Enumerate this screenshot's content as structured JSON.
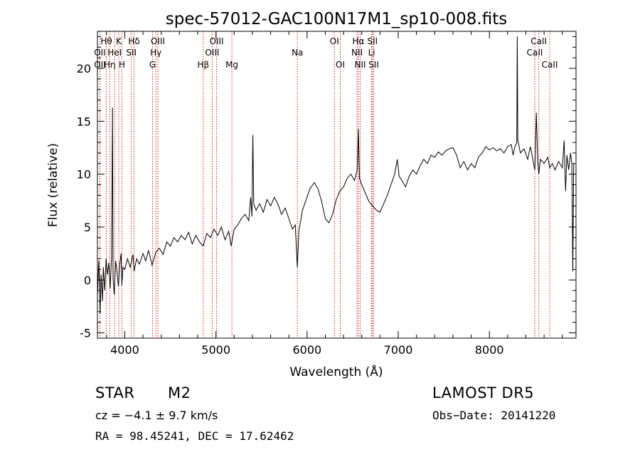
{
  "chart_data": {
    "type": "line",
    "title": "spec-57012-GAC100N17M1_sp10-008.fits",
    "xlabel": "Wavelength (Å)",
    "ylabel": "Flux (relative)",
    "xlim": [
      3700,
      8950
    ],
    "ylim": [
      -5.5,
      23.5
    ],
    "x_ticks": [
      4000,
      5000,
      6000,
      7000,
      8000
    ],
    "y_ticks": [
      -5,
      0,
      5,
      10,
      15,
      20
    ],
    "series": [
      {
        "values_xy": [
          [
            3700,
            -1.5
          ],
          [
            3715,
            1.8
          ],
          [
            3730,
            -3.2
          ],
          [
            3740,
            0.5
          ],
          [
            3755,
            -2.0
          ],
          [
            3765,
            1.2
          ],
          [
            3780,
            -1.0
          ],
          [
            3795,
            2.0
          ],
          [
            3810,
            0.5
          ],
          [
            3825,
            1.6
          ],
          [
            3840,
            -0.8
          ],
          [
            3855,
            2.2
          ],
          [
            3865,
            16.3
          ],
          [
            3872,
            0.2
          ],
          [
            3885,
            -1.4
          ],
          [
            3900,
            1.8
          ],
          [
            3915,
            0.8
          ],
          [
            3930,
            -0.6
          ],
          [
            3945,
            1.5
          ],
          [
            3960,
            2.5
          ],
          [
            3968,
            -0.5
          ],
          [
            3980,
            1.2
          ],
          [
            4000,
            1.0
          ],
          [
            4030,
            2.0
          ],
          [
            4060,
            1.2
          ],
          [
            4090,
            2.4
          ],
          [
            4102,
            0.8
          ],
          [
            4130,
            2.0
          ],
          [
            4160,
            1.5
          ],
          [
            4200,
            2.5
          ],
          [
            4230,
            1.8
          ],
          [
            4260,
            2.8
          ],
          [
            4300,
            1.4
          ],
          [
            4340,
            2.6
          ],
          [
            4380,
            3.0
          ],
          [
            4420,
            2.4
          ],
          [
            4460,
            3.6
          ],
          [
            4500,
            3.2
          ],
          [
            4540,
            4.0
          ],
          [
            4580,
            3.6
          ],
          [
            4620,
            4.2
          ],
          [
            4660,
            3.8
          ],
          [
            4700,
            4.5
          ],
          [
            4740,
            3.4
          ],
          [
            4780,
            4.2
          ],
          [
            4820,
            3.6
          ],
          [
            4861,
            3.2
          ],
          [
            4900,
            4.4
          ],
          [
            4940,
            4.0
          ],
          [
            4980,
            4.8
          ],
          [
            5020,
            4.2
          ],
          [
            5060,
            5.0
          ],
          [
            5100,
            3.8
          ],
          [
            5140,
            4.6
          ],
          [
            5167,
            3.2
          ],
          [
            5200,
            4.8
          ],
          [
            5240,
            5.2
          ],
          [
            5280,
            5.8
          ],
          [
            5320,
            6.2
          ],
          [
            5360,
            5.6
          ],
          [
            5380,
            7.8
          ],
          [
            5395,
            6.0
          ],
          [
            5405,
            13.7
          ],
          [
            5415,
            7.2
          ],
          [
            5440,
            6.6
          ],
          [
            5480,
            7.2
          ],
          [
            5520,
            6.4
          ],
          [
            5560,
            7.6
          ],
          [
            5600,
            7.0
          ],
          [
            5640,
            7.8
          ],
          [
            5680,
            7.2
          ],
          [
            5720,
            6.2
          ],
          [
            5760,
            6.8
          ],
          [
            5800,
            5.8
          ],
          [
            5840,
            4.8
          ],
          [
            5870,
            5.2
          ],
          [
            5893,
            1.2
          ],
          [
            5910,
            4.6
          ],
          [
            5950,
            6.6
          ],
          [
            5990,
            7.6
          ],
          [
            6030,
            8.6
          ],
          [
            6080,
            9.2
          ],
          [
            6120,
            8.6
          ],
          [
            6160,
            7.4
          ],
          [
            6200,
            5.8
          ],
          [
            6240,
            5.4
          ],
          [
            6280,
            6.2
          ],
          [
            6320,
            7.6
          ],
          [
            6360,
            8.4
          ],
          [
            6400,
            8.8
          ],
          [
            6440,
            9.6
          ],
          [
            6480,
            10.0
          ],
          [
            6520,
            9.4
          ],
          [
            6550,
            10.4
          ],
          [
            6563,
            14.3
          ],
          [
            6575,
            9.6
          ],
          [
            6600,
            9.0
          ],
          [
            6640,
            8.2
          ],
          [
            6680,
            7.4
          ],
          [
            6720,
            7.0
          ],
          [
            6760,
            6.6
          ],
          [
            6800,
            6.4
          ],
          [
            6840,
            7.2
          ],
          [
            6880,
            8.0
          ],
          [
            6920,
            9.0
          ],
          [
            6960,
            10.0
          ],
          [
            6990,
            11.4
          ],
          [
            7010,
            9.8
          ],
          [
            7040,
            9.4
          ],
          [
            7080,
            8.8
          ],
          [
            7120,
            9.8
          ],
          [
            7160,
            10.4
          ],
          [
            7200,
            10.0
          ],
          [
            7240,
            10.8
          ],
          [
            7280,
            11.4
          ],
          [
            7320,
            11.0
          ],
          [
            7360,
            11.8
          ],
          [
            7400,
            11.6
          ],
          [
            7440,
            12.1
          ],
          [
            7480,
            11.8
          ],
          [
            7520,
            12.2
          ],
          [
            7560,
            12.4
          ],
          [
            7600,
            12.5
          ],
          [
            7640,
            11.8
          ],
          [
            7680,
            10.6
          ],
          [
            7720,
            11.2
          ],
          [
            7760,
            10.4
          ],
          [
            7800,
            11.0
          ],
          [
            7840,
            10.6
          ],
          [
            7880,
            11.6
          ],
          [
            7920,
            12.0
          ],
          [
            7960,
            12.6
          ],
          [
            8000,
            12.3
          ],
          [
            8040,
            12.5
          ],
          [
            8080,
            12.2
          ],
          [
            8120,
            12.4
          ],
          [
            8160,
            12.0
          ],
          [
            8200,
            12.6
          ],
          [
            8240,
            12.8
          ],
          [
            8260,
            11.8
          ],
          [
            8280,
            12.6
          ],
          [
            8300,
            13.0
          ],
          [
            8306,
            23.0
          ],
          [
            8312,
            13.2
          ],
          [
            8340,
            12.0
          ],
          [
            8380,
            12.4
          ],
          [
            8420,
            11.4
          ],
          [
            8450,
            12.6
          ],
          [
            8498,
            10.4
          ],
          [
            8515,
            15.8
          ],
          [
            8530,
            11.2
          ],
          [
            8542,
            10.0
          ],
          [
            8560,
            11.4
          ],
          [
            8600,
            11.0
          ],
          [
            8640,
            11.6
          ],
          [
            8662,
            10.6
          ],
          [
            8690,
            11.0
          ],
          [
            8720,
            10.4
          ],
          [
            8760,
            11.2
          ],
          [
            8800,
            10.6
          ],
          [
            8820,
            13.2
          ],
          [
            8835,
            8.4
          ],
          [
            8850,
            11.8
          ],
          [
            8870,
            10.4
          ],
          [
            8890,
            12.0
          ],
          [
            8905,
            11.0
          ],
          [
            8915,
            0.8
          ],
          [
            8925,
            11.0
          ]
        ]
      }
    ],
    "lines": [
      {
        "name": "Hθ",
        "x": 3798,
        "row": 1
      },
      {
        "name": "OII",
        "x": 3727,
        "row": 2
      },
      {
        "name": "OII",
        "x": 3727,
        "row": 3
      },
      {
        "name": "Hη",
        "x": 3835,
        "row": 3
      },
      {
        "name": "HeI",
        "x": 3889,
        "row": 2
      },
      {
        "name": "K",
        "x": 3934,
        "row": 1
      },
      {
        "name": "H",
        "x": 3969,
        "row": 3
      },
      {
        "name": "Hδ",
        "x": 4102,
        "row": 1
      },
      {
        "name": "SII",
        "x": 4072,
        "row": 2
      },
      {
        "name": "OIII",
        "x": 4363,
        "row": 1
      },
      {
        "name": "Hγ",
        "x": 4341,
        "row": 2
      },
      {
        "name": "G",
        "x": 4305,
        "row": 3
      },
      {
        "name": "Hβ",
        "x": 4861,
        "row": 3
      },
      {
        "name": "OIII",
        "x": 4959,
        "row": 2
      },
      {
        "name": "OIII",
        "x": 5007,
        "row": 1
      },
      {
        "name": "Mg",
        "x": 5175,
        "row": 3
      },
      {
        "name": "Na",
        "x": 5894,
        "row": 2
      },
      {
        "name": "OI",
        "x": 6300,
        "row": 1
      },
      {
        "name": "OI",
        "x": 6364,
        "row": 3
      },
      {
        "name": "NII",
        "x": 6548,
        "row": 2
      },
      {
        "name": "Hα",
        "x": 6563,
        "row": 1
      },
      {
        "name": "NII",
        "x": 6583,
        "row": 3
      },
      {
        "name": "Li",
        "x": 6708,
        "row": 2
      },
      {
        "name": "SII",
        "x": 6717,
        "row": 1
      },
      {
        "name": "SII",
        "x": 6731,
        "row": 3
      },
      {
        "name": "CaII",
        "x": 8498,
        "row": 2
      },
      {
        "name": "CaII",
        "x": 8542,
        "row": 1
      },
      {
        "name": "CaII",
        "x": 8662,
        "row": 3
      }
    ],
    "grid": false,
    "legend": "none"
  },
  "info": {
    "class": "STAR",
    "subclass": "M2",
    "survey": "LAMOST DR5",
    "cz": "cz = −4.1 ± 9.7 km/s",
    "obs_date": "Obs−Date: 20141220",
    "coords": "RA =  98.45241, DEC =  17.62462"
  }
}
